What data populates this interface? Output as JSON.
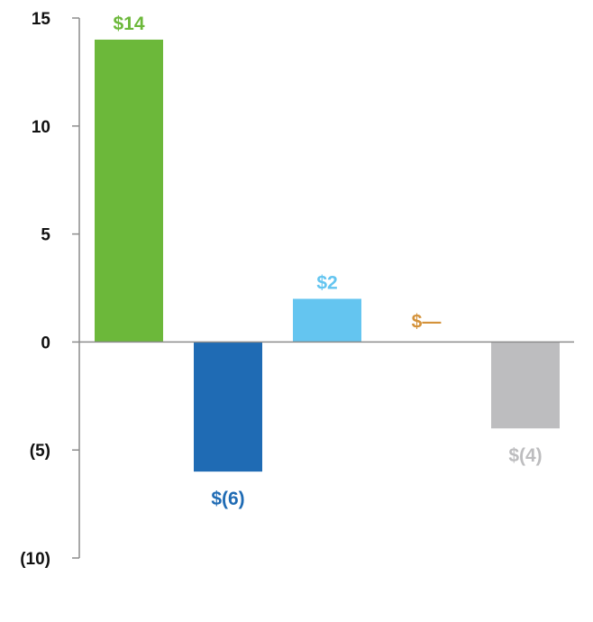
{
  "chart_data": {
    "type": "bar",
    "categories": [
      "",
      "",
      "",
      "",
      ""
    ],
    "values": [
      14,
      -6,
      2,
      0,
      -4
    ],
    "data_labels": [
      "$14",
      "$(6)",
      "$2",
      "$—",
      "$(4)"
    ],
    "colors": [
      "#6cb83a",
      "#1f6bb4",
      "#64c5f0",
      "#d4923a",
      "#bdbdbf"
    ],
    "ylim": [
      -10,
      15
    ],
    "y_ticks": [
      15,
      10,
      5,
      0,
      -5,
      -10
    ],
    "y_tick_labels": [
      "15",
      "10",
      "5",
      "0",
      "(5)",
      "(10)"
    ],
    "title": "",
    "xlabel": "",
    "ylabel": "",
    "grid": false,
    "legend": "none"
  }
}
